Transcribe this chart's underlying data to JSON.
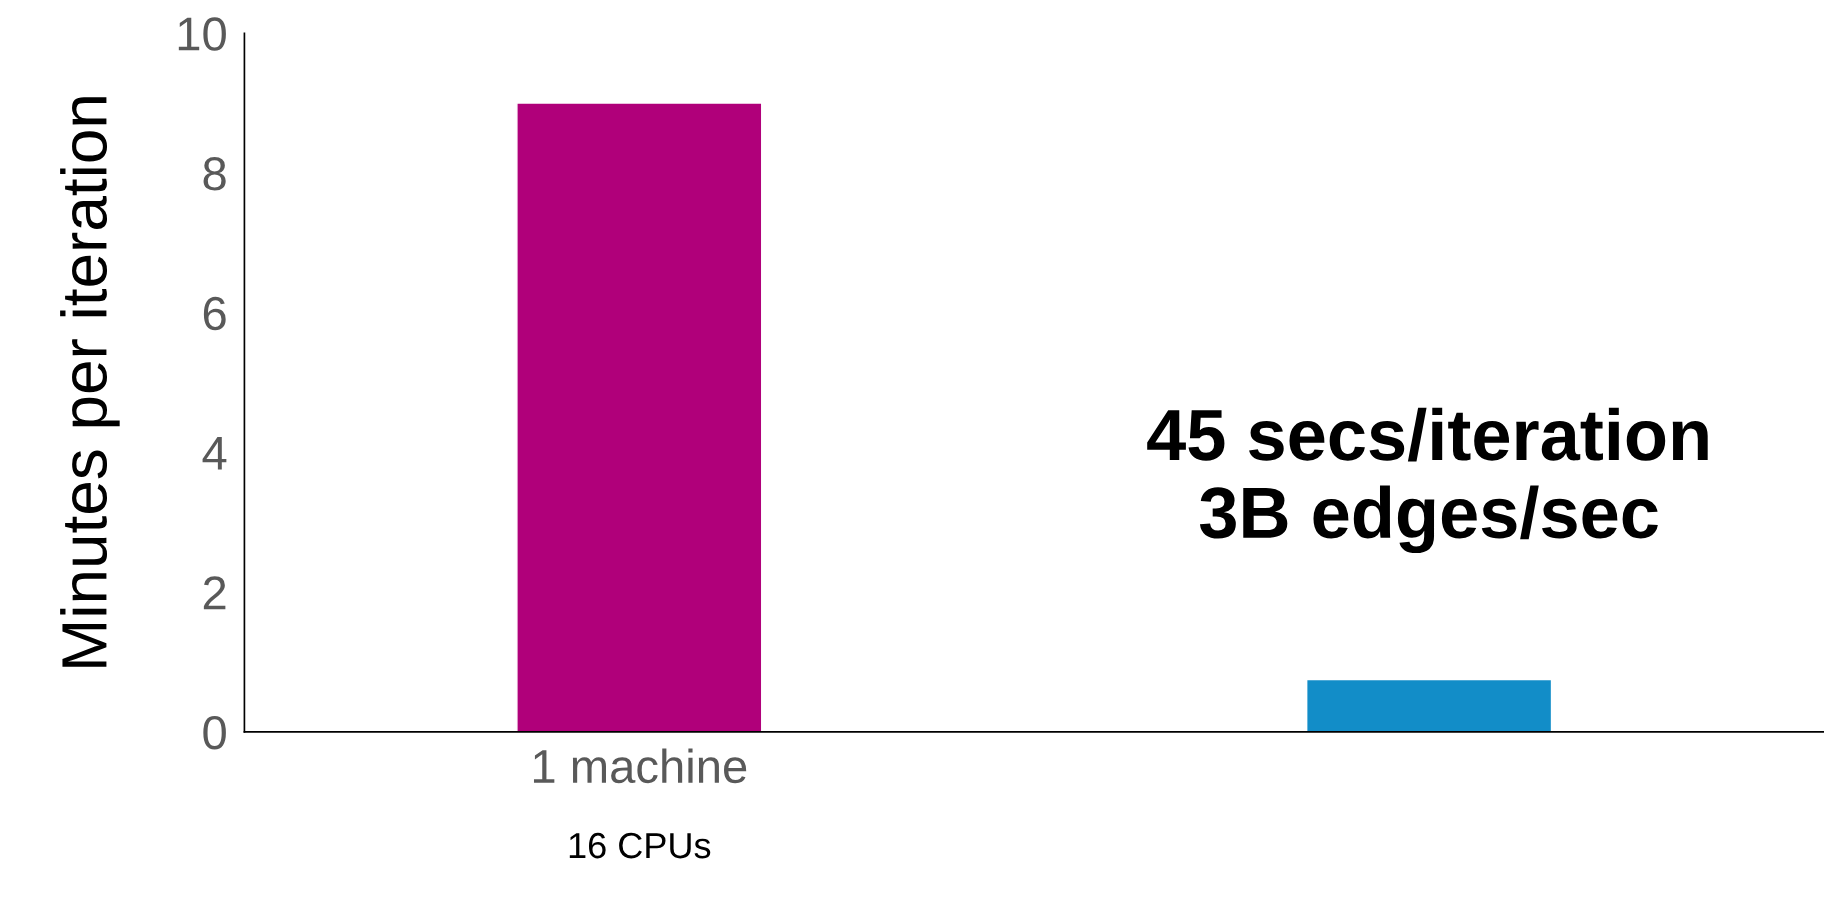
{
  "chart_data": {
    "type": "bar",
    "ylabel": "Minutes per iteration",
    "categories": [
      "1 machine",
      null
    ],
    "values": [
      9.0,
      0.75
    ],
    "colors": [
      "#b0007a",
      "#128dc8"
    ],
    "ylim": [
      0,
      10
    ],
    "yticks": [
      0,
      2,
      4,
      6,
      8,
      10
    ],
    "grid": false,
    "legend": false,
    "annotations": [
      "16 CPUs",
      "45 secs/iteration\n3B edges/sec"
    ]
  }
}
